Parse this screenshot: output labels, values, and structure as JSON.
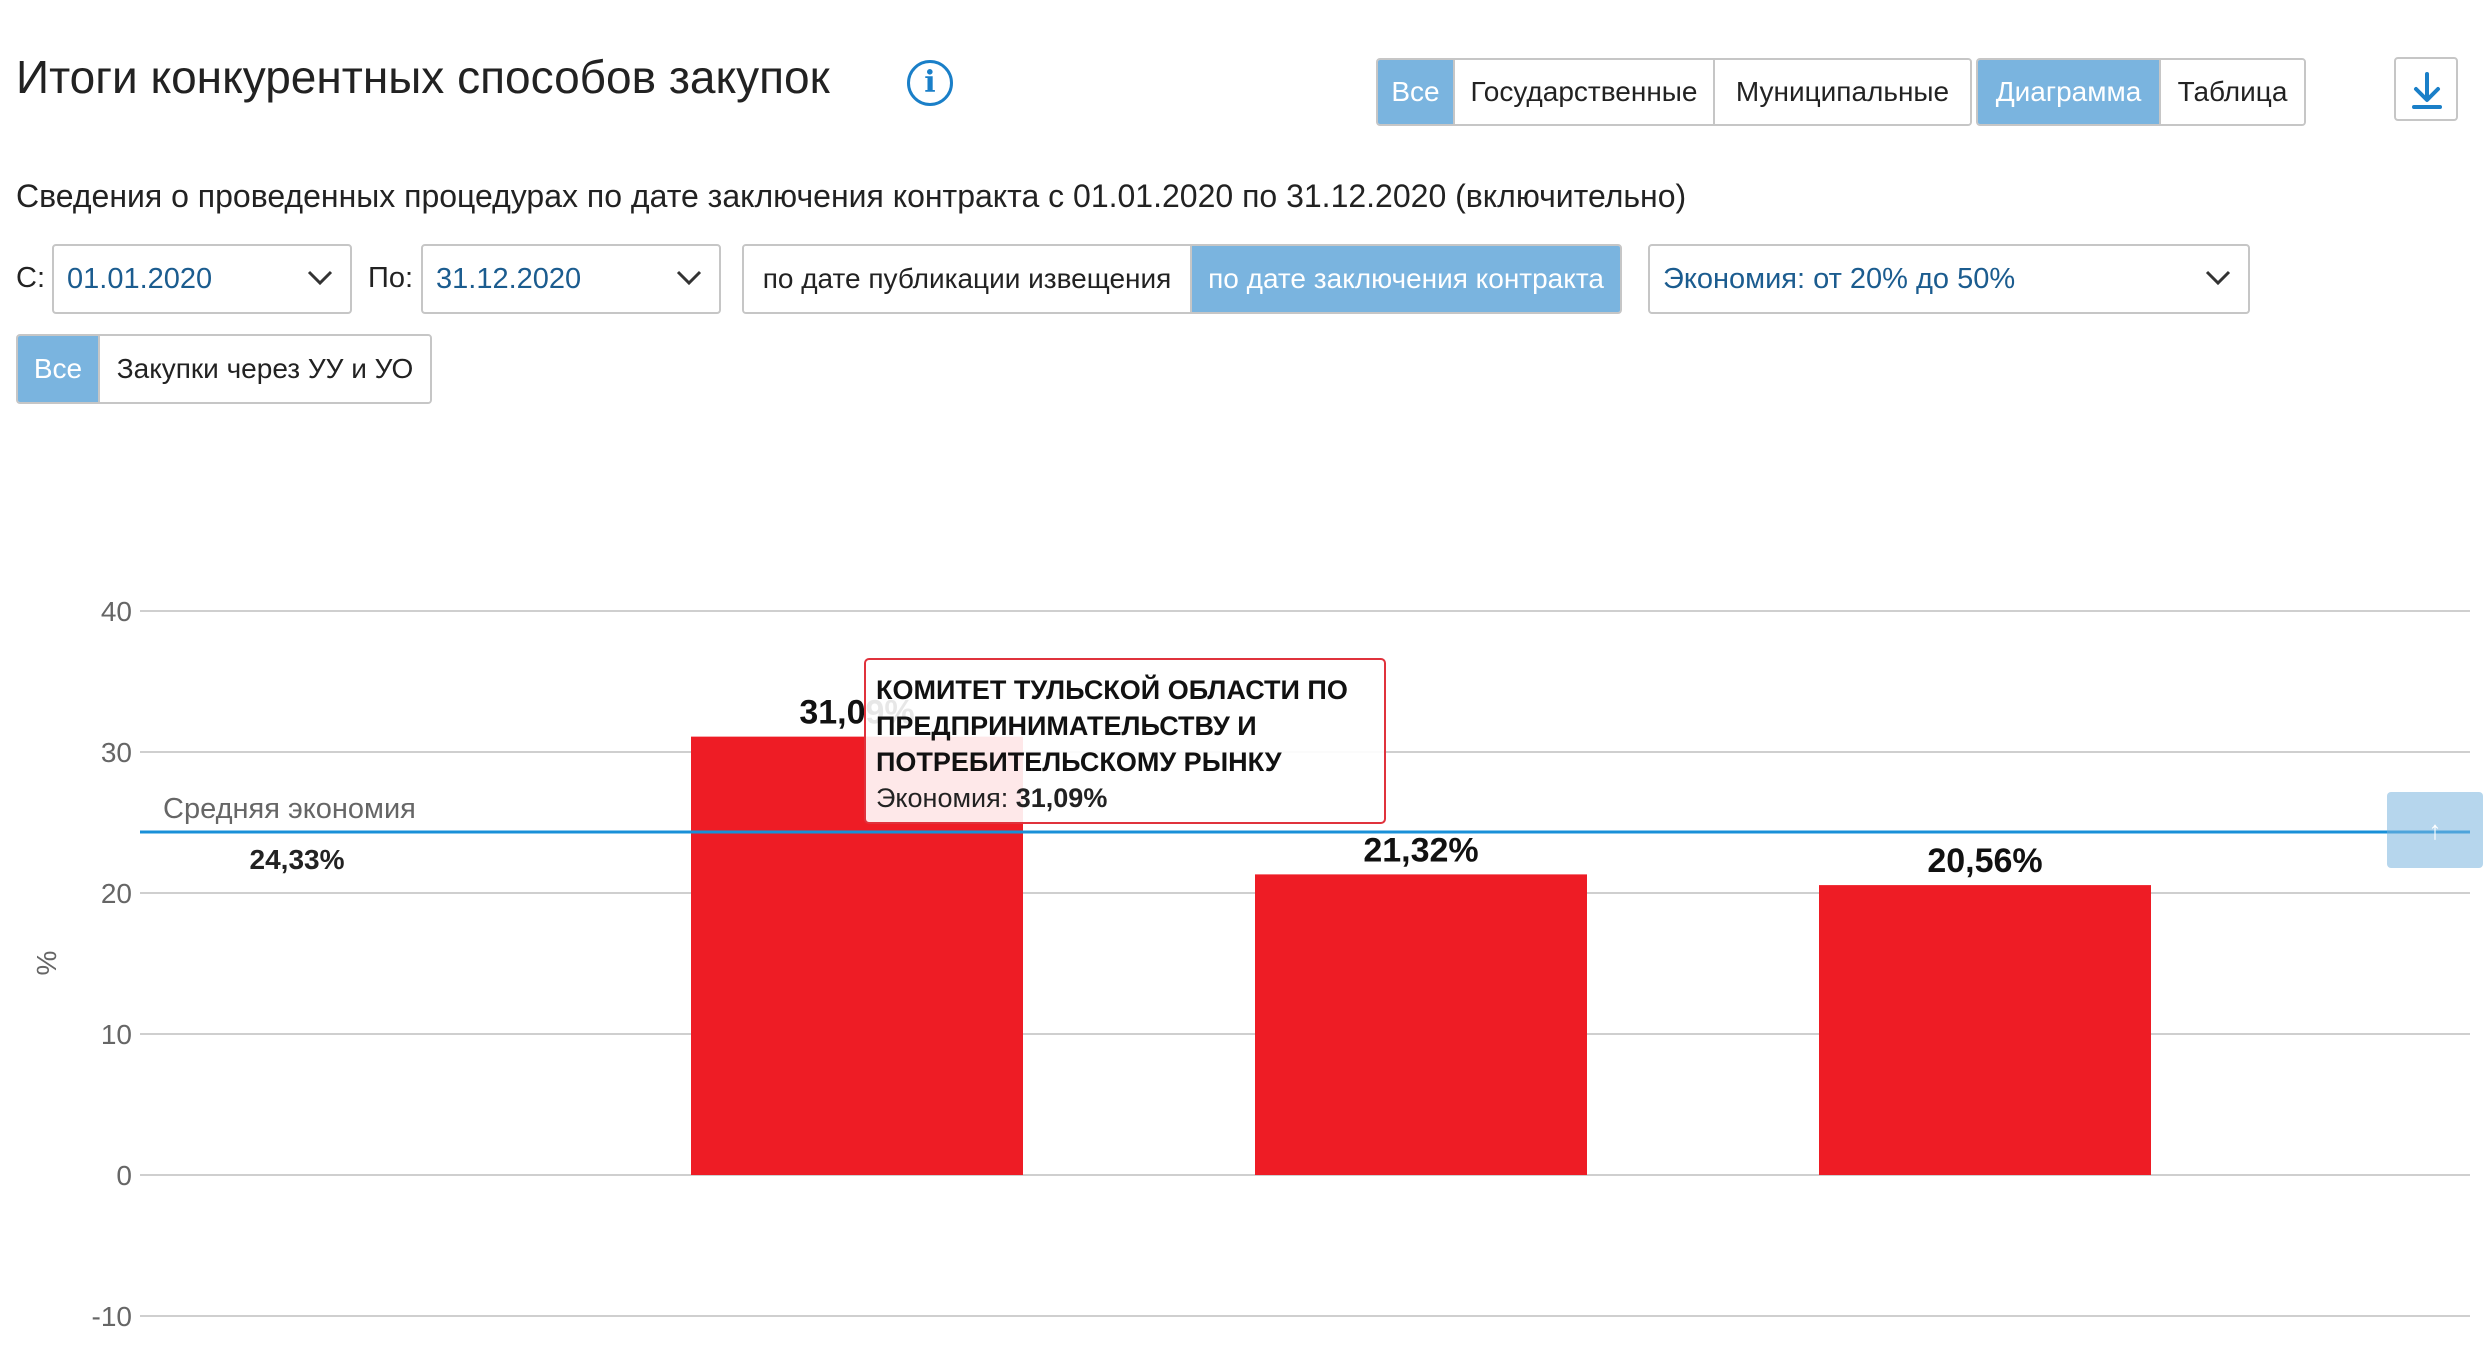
{
  "header": {
    "title": "Итоги конкурентных способов закупок",
    "info_icon": "info-icon",
    "scope_tabs": [
      {
        "label": "Все",
        "active": true
      },
      {
        "label": "Государственные",
        "active": false
      },
      {
        "label": "Муниципальные",
        "active": false
      }
    ],
    "view_tabs": [
      {
        "label": "Диаграмма",
        "active": true
      },
      {
        "label": "Таблица",
        "active": false
      }
    ],
    "download_icon": "download-icon"
  },
  "subtitle": "Сведения о проведенных процедурах по дате заключения контракта с 01.01.2020 по 31.12.2020 (включительно)",
  "filters": {
    "from_label": "С:",
    "from_value": "01.01.2020",
    "to_label": "По:",
    "to_value": "31.12.2020",
    "date_mode_tabs": [
      {
        "label": "по дате публикации извещения",
        "active": false
      },
      {
        "label": "по дате заключения контракта",
        "active": true
      }
    ],
    "economy_value": "Экономия: от 20% до 50%",
    "purchase_tabs": [
      {
        "label": "Все",
        "active": true
      },
      {
        "label": "Закупки через УУ и УО",
        "active": false
      }
    ]
  },
  "colors": {
    "accent": "#7ab4df",
    "bar": "#ee1c25",
    "avg_line": "#1a90d8",
    "tooltip_border": "#e0323c"
  },
  "chart_data": {
    "type": "bar",
    "categories": [
      "",
      "",
      ""
    ],
    "values": [
      31.09,
      21.32,
      20.56
    ],
    "value_labels": [
      "31,09%",
      "21,32%",
      "20,56%"
    ],
    "ylabel": "%",
    "ylim": [
      -10,
      40
    ],
    "yticks": [
      40,
      30,
      20,
      10,
      0,
      -10
    ],
    "grid": true,
    "average": {
      "label": "Средняя экономия",
      "value": 24.33,
      "value_label": "24,33%"
    }
  },
  "tooltip": {
    "name": "КОМИТЕТ ТУЛЬСКОЙ ОБЛАСТИ ПО ПРЕДПРИНИМАТЕЛЬСТВУ И ПОТРЕБИТЕЛЬСКОМУ РЫНКУ",
    "metric_label": "Экономия:",
    "metric_value": "31,09%"
  },
  "scroll_top_icon": "↑"
}
